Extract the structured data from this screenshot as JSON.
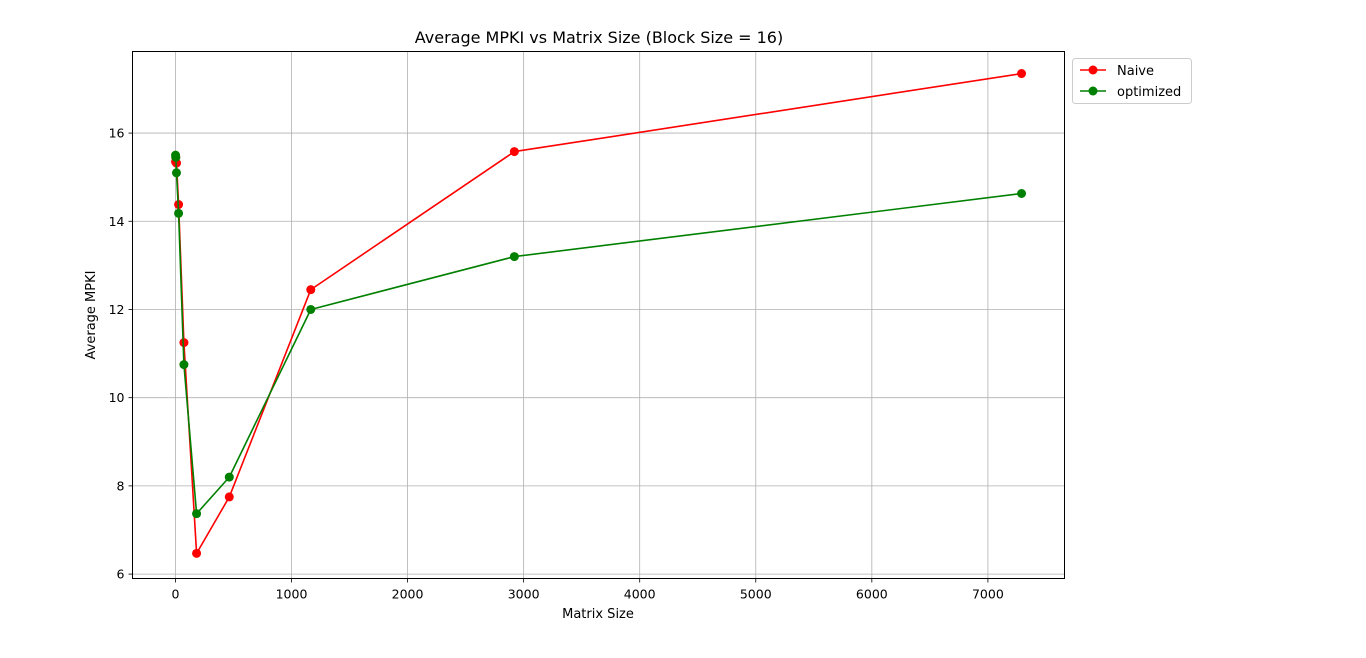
{
  "chart_data": {
    "type": "line",
    "title": "Average MPKI vs Matrix Size (Block Size = 16)",
    "xlabel": "Matrix Size",
    "ylabel": "Average MPKI",
    "xlim": [
      -370,
      7660
    ],
    "ylim": [
      5.9,
      17.85
    ],
    "xticks": [
      0,
      1000,
      2000,
      3000,
      4000,
      5000,
      6000,
      7000
    ],
    "yticks": [
      6,
      8,
      10,
      12,
      14,
      16
    ],
    "grid": true,
    "legend_position": "top-right (outside plot)",
    "series": [
      {
        "name": "Naive",
        "color": "#ff0000",
        "x": [
          1,
          3,
          9,
          27,
          73,
          182,
          464,
          1166,
          2920,
          7290
        ],
        "y": [
          15.35,
          15.45,
          15.32,
          14.38,
          11.25,
          6.47,
          7.75,
          12.45,
          15.58,
          17.35
        ]
      },
      {
        "name": "optimized",
        "color": "#008000",
        "x": [
          1,
          3,
          9,
          27,
          73,
          182,
          464,
          1166,
          2920,
          7290
        ],
        "y": [
          15.5,
          15.45,
          15.1,
          14.18,
          10.75,
          7.37,
          8.2,
          12.0,
          13.2,
          14.63
        ]
      }
    ]
  }
}
